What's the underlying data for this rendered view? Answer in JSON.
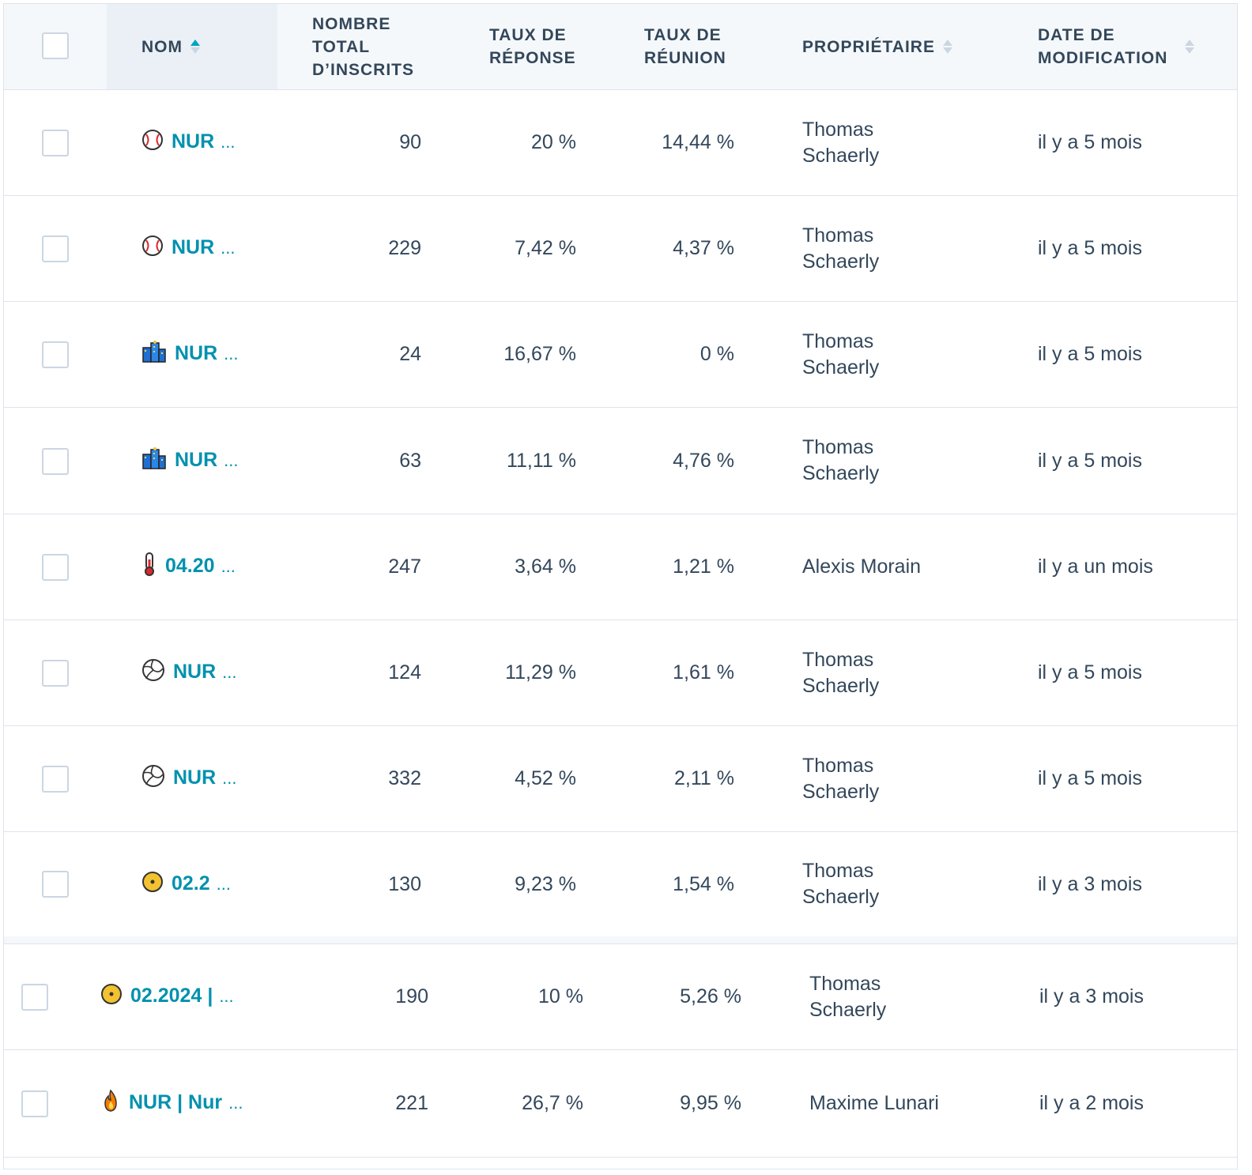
{
  "columns": {
    "name": "NOM",
    "total": "NOMBRE\nTOTAL\nD’INSCRITS",
    "response": "TAUX DE\nRÉPONSE",
    "meeting": "TAUX DE\nRÉUNION",
    "owner": "PROPRIÉTAIRE",
    "modified": "DATE DE\nMODIFICATION"
  },
  "colors": {
    "link": "#0091ae",
    "sort_active": "#00a4bd",
    "header_bg": "#f5f8fa",
    "border": "#dfe3eb"
  },
  "rows": [
    {
      "icon": "baseball-icon",
      "name": "NUR",
      "total": "90",
      "response": "20 %",
      "meeting": "14,44 %",
      "owner": "Thomas\nSchaerly",
      "modified": "il y a 5 mois"
    },
    {
      "icon": "baseball-icon",
      "name": "NUR",
      "total": "229",
      "response": "7,42 %",
      "meeting": "4,37 %",
      "owner": "Thomas\nSchaerly",
      "modified": "il y a 5 mois"
    },
    {
      "icon": "cityscape-icon",
      "name": "NUR",
      "total": "24",
      "response": "16,67 %",
      "meeting": "0 %",
      "owner": "Thomas\nSchaerly",
      "modified": "il y a 5 mois"
    },
    {
      "icon": "cityscape-icon",
      "name": "NUR",
      "total": "63",
      "response": "11,11 %",
      "meeting": "4,76 %",
      "owner": "Thomas\nSchaerly",
      "modified": "il y a 5 mois"
    },
    {
      "icon": "thermometer-icon",
      "name": "04.20",
      "total": "247",
      "response": "3,64 %",
      "meeting": "1,21 %",
      "owner": "Alexis Morain",
      "modified": "il y a un mois"
    },
    {
      "icon": "volleyball-icon",
      "name": "NUR",
      "total": "124",
      "response": "11,29 %",
      "meeting": "1,61 %",
      "owner": "Thomas\nSchaerly",
      "modified": "il y a 5 mois"
    },
    {
      "icon": "volleyball-icon",
      "name": "NUR",
      "total": "332",
      "response": "4,52 %",
      "meeting": "2,11 %",
      "owner": "Thomas\nSchaerly",
      "modified": "il y a 5 mois"
    },
    {
      "icon": "yellow-disc-icon",
      "name": "02.2",
      "total": "130",
      "response": "9,23 %",
      "meeting": "1,54 %",
      "owner": "Thomas\nSchaerly",
      "modified": "il y a 3 mois"
    },
    {
      "icon": "yellow-disc-icon",
      "name": "02.2024 |",
      "total": "190",
      "response": "10 %",
      "meeting": "5,26 %",
      "owner": "Thomas\nSchaerly",
      "modified": "il y a 3 mois"
    },
    {
      "icon": "fire-icon",
      "name": "NUR | Nur",
      "total": "221",
      "response": "26,7 %",
      "meeting": "9,95 %",
      "owner": "Maxime Lunari",
      "modified": "il y a 2 mois"
    }
  ]
}
